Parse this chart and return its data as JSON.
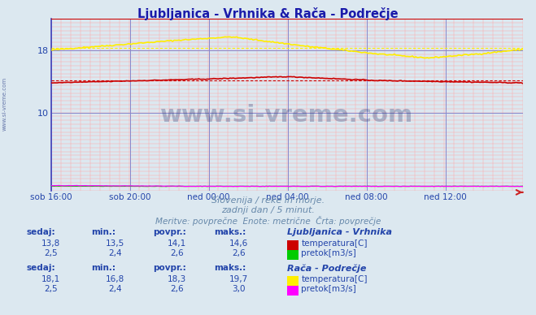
{
  "title": "Ljubljanica - Vrhnika & Rača - Podrečje",
  "title_color": "#1a1aaa",
  "bg_color": "#dce8f0",
  "plot_bg_color": "#dce8f0",
  "grid_color_blue": "#8888cc",
  "grid_color_pink": "#ffaaaa",
  "x_ticks": [
    "sob 16:00",
    "sob 20:00",
    "ned 00:00",
    "ned 04:00",
    "ned 08:00",
    "ned 12:00"
  ],
  "x_tick_positions": [
    0,
    48,
    96,
    144,
    192,
    240
  ],
  "x_max": 287,
  "y_ticks": [
    10,
    18
  ],
  "ylim": [
    0,
    22
  ],
  "subtitle1": "Slovenija / reke in morje.",
  "subtitle2": "zadnji dan / 5 minut.",
  "subtitle3": "Meritve: povprečne  Enote: metrične  Črta: povprečje",
  "subtitle_color": "#6688aa",
  "watermark": "www.si-vreme.com",
  "watermark_color": "#1a2a6a",
  "legend1_title": "Ljubljanica - Vrhnika",
  "legend2_title": "Rača - Podrečje",
  "label_color": "#2244aa",
  "lj_temp_color": "#cc0000",
  "lj_flow_color": "#00cc00",
  "raca_temp_color": "#ffee00",
  "raca_flow_color": "#ff00ff",
  "lj_sedaj_temp": "13,8",
  "lj_min_temp": "13,5",
  "lj_povpr_temp": "14,1",
  "lj_maks_temp": "14,6",
  "lj_sedaj_flow": "2,5",
  "lj_min_flow": "2,4",
  "lj_povpr_flow": "2,6",
  "lj_maks_flow": "2,6",
  "raca_sedaj_temp": "18,1",
  "raca_min_temp": "16,8",
  "raca_povpr_temp": "18,3",
  "raca_maks_temp": "19,7",
  "raca_sedaj_flow": "2,5",
  "raca_min_flow": "2,4",
  "raca_povpr_flow": "2,6",
  "raca_maks_flow": "3,0",
  "lj_temp_avg": 14.1,
  "raca_temp_avg": 18.3,
  "n_points": 288
}
